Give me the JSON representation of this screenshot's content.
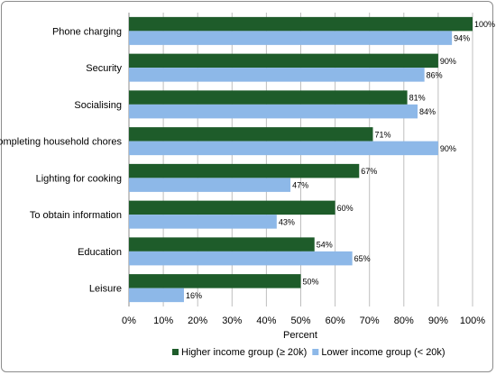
{
  "chart_data": {
    "type": "bar",
    "orientation": "horizontal",
    "categories": [
      "Phone charging",
      "Security",
      "Socialising",
      "Completing household chores",
      "Lighting for cooking",
      "To obtain information",
      "Education",
      "Leisure"
    ],
    "series": [
      {
        "name": "Higher income group (≥ 20k)",
        "color": "#1e5c2a",
        "values": [
          100,
          90,
          81,
          71,
          67,
          60,
          54,
          50
        ],
        "labels": [
          "100%",
          "90%",
          "81%",
          "71%",
          "67%",
          "60%",
          "54%",
          "50%"
        ]
      },
      {
        "name": "Lower income group (< 20k)",
        "color": "#8db8e8",
        "values": [
          94,
          86,
          84,
          90,
          47,
          43,
          65,
          16
        ],
        "labels": [
          "94%",
          "86%",
          "84%",
          "90%",
          "47%",
          "43%",
          "65%",
          "16%"
        ]
      }
    ],
    "xlabel": "Percent",
    "ylabel": "",
    "xlim": [
      0,
      100
    ],
    "xticks": [
      0,
      10,
      20,
      30,
      40,
      50,
      60,
      70,
      80,
      90,
      100
    ],
    "xtick_labels": [
      "0%",
      "10%",
      "20%",
      "30%",
      "40%",
      "50%",
      "60%",
      "70%",
      "80%",
      "90%",
      "100%"
    ],
    "grid": true,
    "legend_position": "bottom"
  }
}
